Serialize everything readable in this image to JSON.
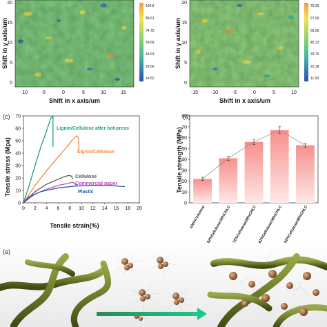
{
  "panel_a": {
    "ylabel": "Shift in y axis/um",
    "xlabel": "Shift in x axis/um",
    "yticks": [
      "20",
      "15",
      "10",
      "5",
      "0"
    ],
    "xticks": [
      "-10",
      "-5",
      "0",
      "5",
      "10",
      "15"
    ],
    "colorbar": [
      "104.8",
      "89.61",
      "74.75",
      "59.69",
      "44.63",
      "29.56",
      "14.50"
    ]
  },
  "panel_b": {
    "ylabel": "Shift in y axis/um",
    "xlabel": "Shift in x axis/um",
    "yticks": [
      "20",
      "15",
      "10",
      "5",
      "0"
    ],
    "xticks": [
      "-15",
      "-10",
      "-5",
      "0",
      "5",
      "10"
    ],
    "colorbar": [
      "79.25",
      "67.90",
      "56.56",
      "45.13",
      "33.75",
      "22.38",
      "11.00"
    ]
  },
  "colors": {
    "green_series": "#1d9e7e",
    "orange_series": "#f4873a",
    "gray_series": "#555555",
    "purple_series": "#b24fb8",
    "blue_series": "#1c5aa8",
    "bar_top": "#f8a3a0",
    "bar_bottom": "#fde8e6"
  },
  "panel_c": {
    "letter": "(c)",
    "ylabel": "Tensile stress (Mpa)",
    "xlabel": "Tensile strain(%)",
    "chart_data": {
      "type": "line",
      "xlim": [
        0,
        20
      ],
      "ylim": [
        0,
        70
      ],
      "xticks": [
        "0",
        "2",
        "4",
        "6",
        "8",
        "10",
        "12",
        "14",
        "16",
        "18",
        "20"
      ],
      "yticks": [
        "0",
        "10",
        "20",
        "30",
        "40",
        "50",
        "60",
        "70"
      ],
      "series": [
        {
          "name": "Lignin/Cellulose after hot-press",
          "color": "#1d9e7e",
          "x": [
            0,
            1,
            2,
            3,
            4,
            4.7,
            5.1,
            5.1
          ],
          "y": [
            0,
            14,
            30,
            45,
            58,
            68,
            70,
            45
          ]
        },
        {
          "name": "Lignin/Cellulose",
          "color": "#f4873a",
          "x": [
            0,
            2,
            4,
            6,
            7.5,
            8.5,
            9.2,
            9.5,
            9.6
          ],
          "y": [
            0,
            14,
            26,
            37,
            45,
            51,
            54,
            52,
            40
          ]
        },
        {
          "name": "Cellulose",
          "color": "#555555",
          "x": [
            0,
            2,
            4,
            6,
            7,
            7.8,
            8.3,
            8.5
          ],
          "y": [
            0,
            9,
            15,
            19,
            21,
            22,
            21.5,
            19
          ]
        },
        {
          "name": "Commercial paper",
          "color": "#b24fb8",
          "x": [
            0,
            2,
            4,
            6,
            7.5,
            8.5,
            9.2
          ],
          "y": [
            0,
            7,
            11,
            14,
            15.5,
            16.5,
            14
          ]
        },
        {
          "name": "Plastic",
          "color": "#1c5aa8",
          "x": [
            0,
            1,
            3,
            6,
            9,
            12,
            15,
            17.5
          ],
          "y": [
            0,
            5,
            9,
            12,
            13.5,
            14,
            14,
            13
          ]
        }
      ]
    }
  },
  "panel_d": {
    "letter": "(d)",
    "ylabel": "Tensile strength (MPa)",
    "chart_data": {
      "type": "bar",
      "categories": [
        "100%Cellulose",
        "82%Cellulose/18%CHLC",
        "72%Cellulose/28%CHLC",
        "62%Cellulose/38%CHLC",
        "52%Cellulose/48%CHLC"
      ],
      "values": [
        22,
        41,
        56,
        67,
        53
      ],
      "errors": [
        1.5,
        2,
        2.5,
        3,
        1.8
      ],
      "ylim": [
        0,
        80
      ],
      "yticks": [
        "0",
        "10",
        "20",
        "30",
        "40",
        "50",
        "60",
        "70",
        "80"
      ]
    }
  },
  "panel_e": {
    "letter": "(e)"
  }
}
